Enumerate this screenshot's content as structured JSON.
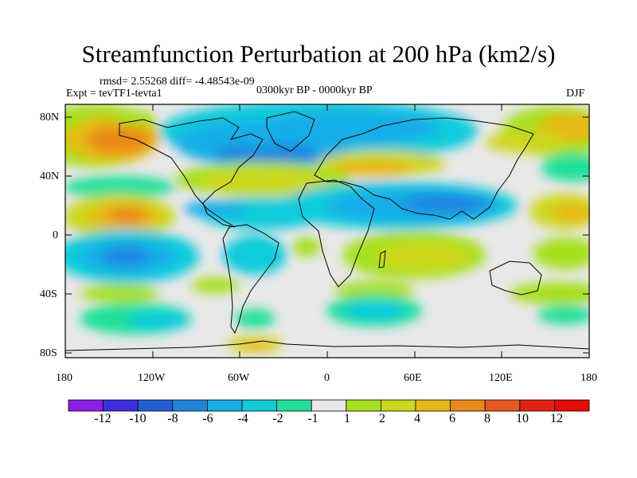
{
  "title": "Streamfunction Perturbation at 200 hPa (km2/s)",
  "stats": "rmsd= 2.55268 diff= -4.48543e-09",
  "experiment": "Expt = tevTF1-tevta1",
  "period": "0300kyr BP - 0000kyr BP",
  "season": "DJF",
  "lat_labels": [
    "80N",
    "40N",
    "0",
    "40S",
    "80S"
  ],
  "lon_labels": [
    "180",
    "120W",
    "60W",
    "0",
    "60E",
    "120E",
    "180"
  ],
  "colorbar": {
    "labels": [
      "-12",
      "-10",
      "-8",
      "-6",
      "-4",
      "-2",
      "-1",
      "1",
      "2",
      "4",
      "6",
      "8",
      "10",
      "12"
    ],
    "colors": [
      "#8a1ee8",
      "#3c2ee0",
      "#1f5fd8",
      "#1f86e0",
      "#14aee8",
      "#10ccdc",
      "#1ee09a",
      "#e8e8e8",
      "#a6e01c",
      "#ccd81a",
      "#e8b812",
      "#ea8a16",
      "#e8581a",
      "#e8200e",
      "#e80a08"
    ],
    "neutral_color": "#e8e8e8"
  }
}
